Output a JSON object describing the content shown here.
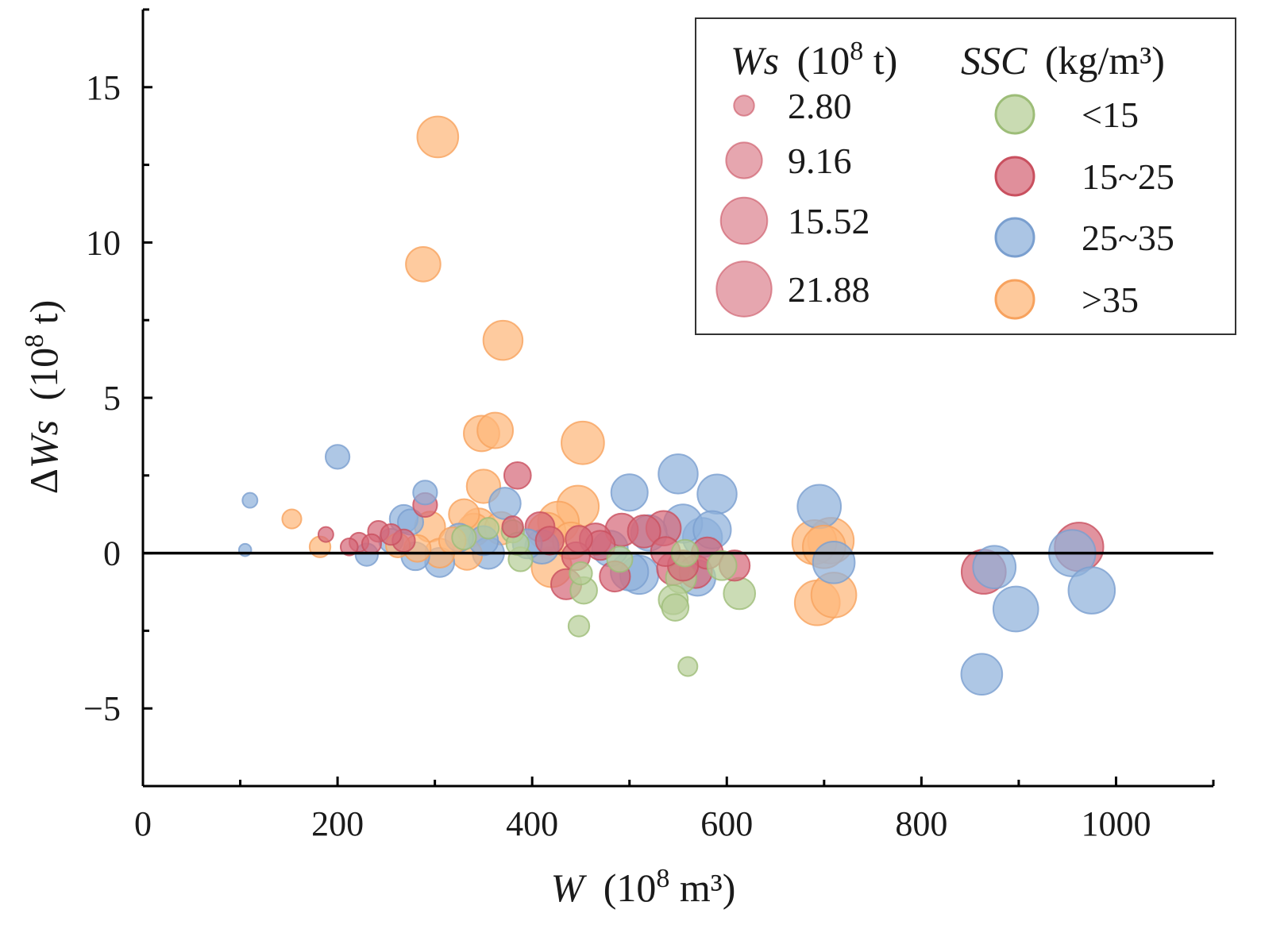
{
  "chart_data": {
    "type": "scatter",
    "subtype": "bubble",
    "xlabel": {
      "var": "W",
      "unit": "(10",
      "sup": "8",
      "unit_tail": " m³)"
    },
    "ylabel": {
      "prefix": "Δ",
      "var": "Ws",
      "unit": "(10",
      "sup": "8",
      "unit_tail": " t)"
    },
    "xlim": [
      0,
      1100
    ],
    "ylim": [
      -7.5,
      17.5
    ],
    "xticks": [
      0,
      200,
      400,
      600,
      800,
      1000
    ],
    "yticks": [
      -5,
      0,
      5,
      10,
      15
    ],
    "ytick_labels": [
      "−5",
      "0",
      "5",
      "10",
      "15"
    ],
    "reference_line_y": 0,
    "size_legend": {
      "title_var": "Ws",
      "title_unit": "(10",
      "title_sup": "8",
      "title_tail": " t)",
      "items": [
        {
          "value": 2.8,
          "label": "2.80"
        },
        {
          "value": 9.16,
          "label": "9.16"
        },
        {
          "value": 15.52,
          "label": "15.52"
        },
        {
          "value": 21.88,
          "label": "21.88"
        }
      ]
    },
    "color_legend": {
      "title_var": "SSC",
      "title_unit": "(kg/m³)",
      "items": [
        {
          "key": "lt15",
          "label": "<15",
          "fill": "#b7cf98",
          "stroke": "#9dbd78"
        },
        {
          "key": "15to25",
          "label": "15~25",
          "fill": "#d66a7a",
          "stroke": "#c9505f"
        },
        {
          "key": "25to35",
          "label": "25~35",
          "fill": "#8fb1db",
          "stroke": "#7a9fcf"
        },
        {
          "key": "gt35",
          "label": ">35",
          "fill": "#fdb77a",
          "stroke": "#f7a25e"
        }
      ]
    },
    "series": [
      {
        "name": "<15",
        "key": "lt15",
        "points": [
          [
            355,
            0.8,
            3.0
          ],
          [
            380,
            0.7,
            3.5
          ],
          [
            385,
            0.3,
            3.5
          ],
          [
            388,
            -0.2,
            4.0
          ],
          [
            448,
            -2.35,
            3.0
          ],
          [
            450,
            -0.65,
            3.5
          ],
          [
            453,
            -1.2,
            5.0
          ],
          [
            545,
            -1.5,
            6.0
          ],
          [
            547,
            -1.75,
            5.0
          ],
          [
            553,
            -0.8,
            6.5
          ],
          [
            557,
            0.0,
            5.0
          ],
          [
            560,
            -3.65,
            2.5
          ],
          [
            595,
            -0.4,
            6.0
          ],
          [
            613,
            -1.3,
            7.0
          ],
          [
            330,
            0.5,
            4.0
          ],
          [
            490,
            -0.2,
            4.5
          ]
        ]
      },
      {
        "name": "15~25",
        "key": "15to25",
        "points": [
          [
            188,
            0.6,
            1.5
          ],
          [
            212,
            0.2,
            2.0
          ],
          [
            222,
            0.35,
            2.5
          ],
          [
            235,
            0.3,
            2.5
          ],
          [
            242,
            0.7,
            3.0
          ],
          [
            255,
            0.6,
            3.0
          ],
          [
            268,
            0.4,
            3.5
          ],
          [
            290,
            1.55,
            4.0
          ],
          [
            385,
            2.5,
            5.0
          ],
          [
            380,
            0.85,
            3.0
          ],
          [
            408,
            0.85,
            6.0
          ],
          [
            418,
            0.4,
            5.5
          ],
          [
            435,
            -1.0,
            6.5
          ],
          [
            445,
            -0.1,
            5.5
          ],
          [
            448,
            0.45,
            5.0
          ],
          [
            465,
            0.45,
            7.0
          ],
          [
            470,
            0.25,
            6.0
          ],
          [
            485,
            -0.75,
            6.5
          ],
          [
            492,
            0.75,
            7.5
          ],
          [
            515,
            0.7,
            7.5
          ],
          [
            535,
            0.8,
            8.5
          ],
          [
            537,
            0.05,
            6.0
          ],
          [
            545,
            -0.5,
            7.5
          ],
          [
            555,
            -0.4,
            6.5
          ],
          [
            568,
            -0.6,
            7.5
          ],
          [
            580,
            0.0,
            7.0
          ],
          [
            608,
            -0.4,
            6.5
          ],
          [
            864,
            -0.6,
            14.0
          ],
          [
            962,
            0.2,
            17.0
          ]
        ]
      },
      {
        "name": "25~35",
        "key": "25to35",
        "points": [
          [
            105,
            0.1,
            1.0
          ],
          [
            110,
            1.7,
            1.5
          ],
          [
            200,
            3.1,
            4.0
          ],
          [
            230,
            -0.05,
            3.5
          ],
          [
            255,
            0.4,
            4.0
          ],
          [
            268,
            1.1,
            5.5
          ],
          [
            275,
            1.0,
            4.5
          ],
          [
            280,
            -0.1,
            5.5
          ],
          [
            290,
            1.95,
            4.0
          ],
          [
            305,
            -0.3,
            6.0
          ],
          [
            325,
            0.5,
            5.5
          ],
          [
            350,
            0.4,
            6.0
          ],
          [
            355,
            0.0,
            7.0
          ],
          [
            372,
            1.6,
            7.0
          ],
          [
            395,
            0.3,
            6.0
          ],
          [
            410,
            0.2,
            8.0
          ],
          [
            480,
            0.15,
            9.0
          ],
          [
            500,
            1.95,
            9.5
          ],
          [
            500,
            -0.6,
            10.0
          ],
          [
            510,
            -0.7,
            10.5
          ],
          [
            520,
            0.65,
            9.0
          ],
          [
            550,
            2.55,
            11.0
          ],
          [
            555,
            0.95,
            10.5
          ],
          [
            570,
            -0.8,
            9.0
          ],
          [
            575,
            0.5,
            11.0
          ],
          [
            585,
            0.75,
            10.0
          ],
          [
            590,
            1.9,
            11.0
          ],
          [
            695,
            1.5,
            13.5
          ],
          [
            710,
            -0.3,
            12.5
          ],
          [
            862,
            -3.9,
            12.0
          ],
          [
            875,
            -0.45,
            13.0
          ],
          [
            897,
            -1.8,
            14.5
          ],
          [
            955,
            0.0,
            15.5
          ],
          [
            975,
            -1.2,
            15.5
          ]
        ]
      },
      {
        "name": ">35",
        "key": "gt35",
        "points": [
          [
            153,
            1.1,
            2.5
          ],
          [
            182,
            0.2,
            3.0
          ],
          [
            262,
            0.25,
            4.0
          ],
          [
            282,
            0.15,
            5.0
          ],
          [
            295,
            0.85,
            6.5
          ],
          [
            305,
            0.0,
            6.0
          ],
          [
            318,
            0.4,
            5.0
          ],
          [
            330,
            1.25,
            6.5
          ],
          [
            333,
            -0.05,
            6.5
          ],
          [
            340,
            0.75,
            7.5
          ],
          [
            345,
            0.9,
            8.0
          ],
          [
            348,
            3.85,
            9.0
          ],
          [
            350,
            2.15,
            8.0
          ],
          [
            362,
            3.95,
            9.0
          ],
          [
            368,
            0.8,
            7.5
          ],
          [
            370,
            6.85,
            11.0
          ],
          [
            288,
            9.3,
            8.5
          ],
          [
            303,
            13.4,
            12.0
          ],
          [
            415,
            0.7,
            10.0
          ],
          [
            420,
            -0.45,
            11.5
          ],
          [
            427,
            1.0,
            12.0
          ],
          [
            440,
            0.4,
            9.5
          ],
          [
            447,
            1.5,
            12.5
          ],
          [
            452,
            3.55,
            13.0
          ],
          [
            690,
            0.35,
            14.0
          ],
          [
            693,
            -1.6,
            14.5
          ],
          [
            700,
            0.2,
            13.0
          ],
          [
            707,
            0.4,
            15.0
          ],
          [
            710,
            -1.35,
            14.5
          ]
        ]
      }
    ]
  }
}
